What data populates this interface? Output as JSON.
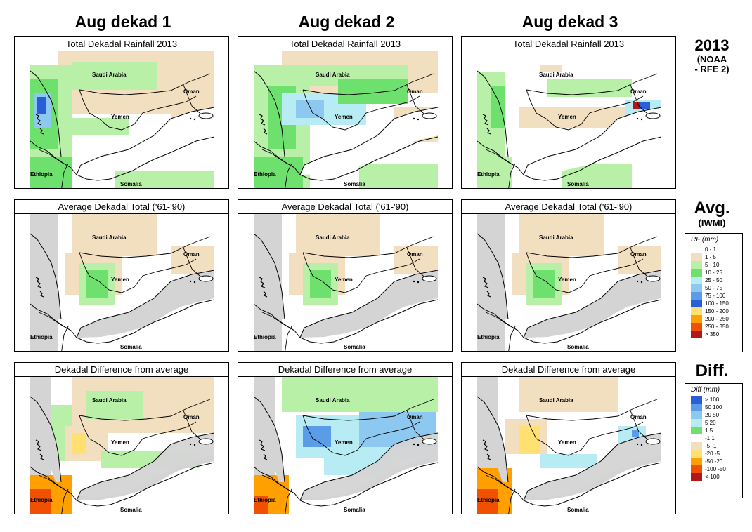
{
  "columns": [
    "Aug dekad 1",
    "Aug dekad 2",
    "Aug dekad 3"
  ],
  "row_titles": [
    "Total Dekadal Rainfall 2013",
    "Average Dekadal Total ('61-'90)",
    "Dekadal Difference from average"
  ],
  "side_labels": {
    "year": "2013",
    "year_source": "(NOAA\n- RFE 2)",
    "avg": "Avg.",
    "avg_source": "(IWMI)",
    "diff": "Diff."
  },
  "map_labels": {
    "saudi": "Saudi Arabia",
    "oman": "Oman",
    "yemen": "Yemen",
    "ethiopia": "Ethiopia",
    "somalia": "Somalia"
  },
  "legend_rf": {
    "title": "RF (mm)",
    "items": [
      {
        "label": "0 - 1",
        "color": "#ffffff"
      },
      {
        "label": "1 - 5",
        "color": "#f2dfc0"
      },
      {
        "label": "5 - 10",
        "color": "#b8f0a8"
      },
      {
        "label": "10 - 25",
        "color": "#6ee06e"
      },
      {
        "label": "25 - 50",
        "color": "#b8ecf4"
      },
      {
        "label": "50 - 75",
        "color": "#8cc8f0"
      },
      {
        "label": "75 - 100",
        "color": "#5a9ce8"
      },
      {
        "label": "100 - 150",
        "color": "#2a5ed8"
      },
      {
        "label": "150 - 200",
        "color": "#ffe070"
      },
      {
        "label": "200 - 250",
        "color": "#ffa000"
      },
      {
        "label": "250 - 350",
        "color": "#f05000"
      },
      {
        "label": "> 350",
        "color": "#b01818"
      }
    ]
  },
  "legend_diff": {
    "title": "Diff (mm)",
    "items": [
      {
        "label": "> 100",
        "color": "#2a5ed8"
      },
      {
        "label": "50  100",
        "color": "#5a9ce8"
      },
      {
        "label": "20  50",
        "color": "#8cc8f0"
      },
      {
        "label": "5  20",
        "color": "#b8ecf4"
      },
      {
        "label": "1  5",
        "color": "#6ee06e"
      },
      {
        "label": "-1  1",
        "color": "#ffffff"
      },
      {
        "label": "-5  -1",
        "color": "#f2dfc0"
      },
      {
        "label": "-20  -5",
        "color": "#ffe070"
      },
      {
        "label": "-50  -20",
        "color": "#ffa000"
      },
      {
        "label": "-100  -50",
        "color": "#f05000"
      },
      {
        "label": "<-100",
        "color": "#b01818"
      }
    ]
  },
  "colors": {
    "nodata": "#d4d4d4",
    "tan": "#f2dfc0",
    "lightgreen": "#b8f0a8",
    "green": "#6ee06e",
    "lightblue": "#b8ecf4",
    "blue": "#8cc8f0",
    "midblue": "#5a9ce8",
    "darkblue": "#2a5ed8",
    "yellow": "#ffe070",
    "orange": "#ffa000",
    "redorange": "#f05000",
    "darkred": "#b01818"
  }
}
